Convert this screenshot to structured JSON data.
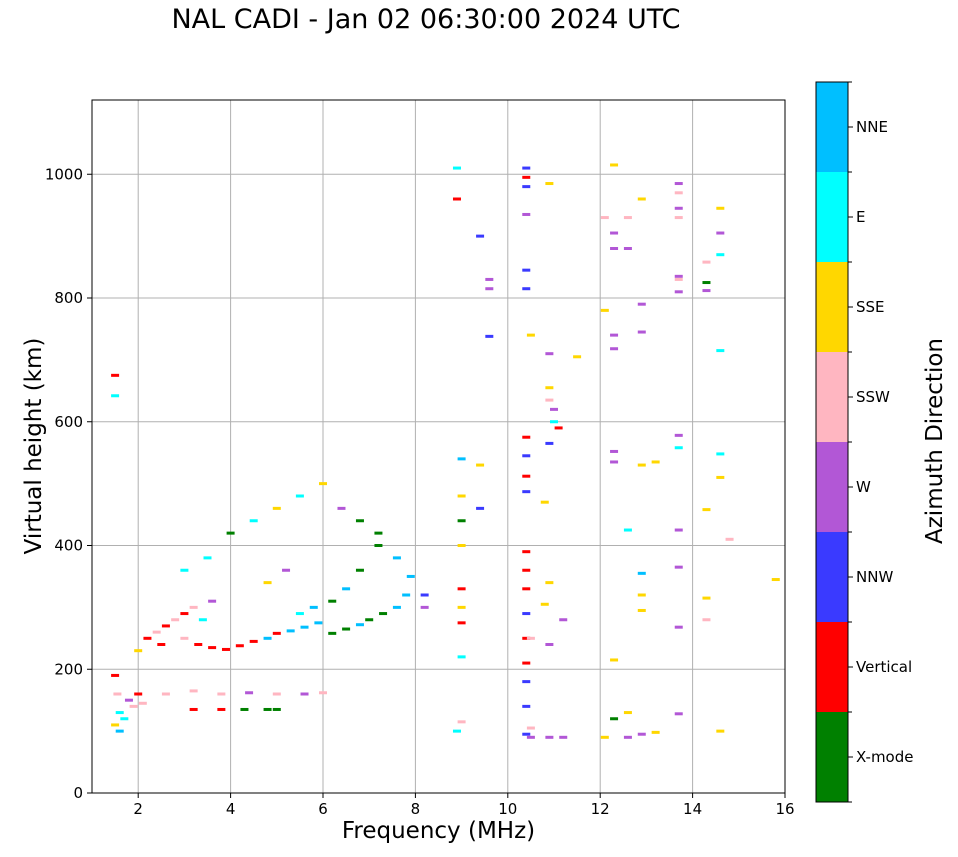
{
  "chart_data": {
    "type": "scatter",
    "title": "NAL CADI - Jan 02 06:30:00 2024 UTC",
    "xlabel": "Frequency (MHz)",
    "ylabel": "Virtual height (km)",
    "xlim": [
      1,
      16
    ],
    "ylim": [
      0,
      1120
    ],
    "xticks": [
      2,
      4,
      6,
      8,
      10,
      12,
      14,
      16
    ],
    "yticks": [
      0,
      200,
      400,
      600,
      800,
      1000
    ],
    "grid": true,
    "colorbar": {
      "label": "Azimuth Direction",
      "categories": [
        {
          "name": "X-mode",
          "color": "#008000"
        },
        {
          "name": "Vertical",
          "color": "#ff0000"
        },
        {
          "name": "NNW",
          "color": "#3a3aff"
        },
        {
          "name": "W",
          "color": "#b257d6"
        },
        {
          "name": "SSW",
          "color": "#ffb6c1"
        },
        {
          "name": "SSE",
          "color": "#ffd700"
        },
        {
          "name": "E",
          "color": "#00ffff"
        },
        {
          "name": "NNE",
          "color": "#00bfff"
        }
      ]
    },
    "points": [
      [
        1.5,
        675,
        "Vertical"
      ],
      [
        1.5,
        642,
        "E"
      ],
      [
        1.5,
        190,
        "Vertical"
      ],
      [
        1.55,
        160,
        "SSW"
      ],
      [
        1.6,
        130,
        "E"
      ],
      [
        1.5,
        110,
        "SSE"
      ],
      [
        1.6,
        100,
        "NNE"
      ],
      [
        1.7,
        120,
        "E"
      ],
      [
        1.8,
        150,
        "W"
      ],
      [
        1.9,
        140,
        "SSW"
      ],
      [
        2.0,
        160,
        "Vertical"
      ],
      [
        2.1,
        145,
        "SSW"
      ],
      [
        2.0,
        230,
        "SSE"
      ],
      [
        2.2,
        250,
        "Vertical"
      ],
      [
        2.4,
        260,
        "SSW"
      ],
      [
        2.6,
        270,
        "Vertical"
      ],
      [
        2.8,
        280,
        "SSW"
      ],
      [
        3.0,
        290,
        "Vertical"
      ],
      [
        3.2,
        300,
        "SSW"
      ],
      [
        3.4,
        280,
        "E"
      ],
      [
        3.6,
        310,
        "W"
      ],
      [
        2.5,
        240,
        "Vertical"
      ],
      [
        3.0,
        250,
        "SSW"
      ],
      [
        3.3,
        240,
        "Vertical"
      ],
      [
        3.6,
        235,
        "Vertical"
      ],
      [
        3.9,
        232,
        "Vertical"
      ],
      [
        4.2,
        238,
        "Vertical"
      ],
      [
        4.5,
        245,
        "Vertical"
      ],
      [
        4.8,
        250,
        "NNE"
      ],
      [
        5.0,
        258,
        "Vertical"
      ],
      [
        5.3,
        262,
        "NNE"
      ],
      [
        5.6,
        268,
        "NNE"
      ],
      [
        5.9,
        275,
        "NNE"
      ],
      [
        6.2,
        258,
        "X-mode"
      ],
      [
        6.5,
        265,
        "X-mode"
      ],
      [
        6.8,
        272,
        "NNE"
      ],
      [
        7.0,
        280,
        "X-mode"
      ],
      [
        7.3,
        290,
        "X-mode"
      ],
      [
        7.6,
        300,
        "NNE"
      ],
      [
        7.8,
        320,
        "NNE"
      ],
      [
        7.9,
        350,
        "NNE"
      ],
      [
        7.6,
        380,
        "NNE"
      ],
      [
        7.2,
        400,
        "X-mode"
      ],
      [
        6.8,
        360,
        "X-mode"
      ],
      [
        6.5,
        330,
        "NNE"
      ],
      [
        6.2,
        310,
        "X-mode"
      ],
      [
        5.8,
        300,
        "NNE"
      ],
      [
        5.5,
        290,
        "E"
      ],
      [
        3.0,
        360,
        "E"
      ],
      [
        3.5,
        380,
        "E"
      ],
      [
        4.0,
        420,
        "X-mode"
      ],
      [
        4.5,
        440,
        "E"
      ],
      [
        5.0,
        460,
        "SSE"
      ],
      [
        5.5,
        480,
        "E"
      ],
      [
        6.0,
        500,
        "SSE"
      ],
      [
        6.4,
        460,
        "W"
      ],
      [
        6.8,
        440,
        "X-mode"
      ],
      [
        7.2,
        420,
        "X-mode"
      ],
      [
        5.2,
        360,
        "W"
      ],
      [
        4.8,
        340,
        "SSE"
      ],
      [
        2.6,
        160,
        "SSW"
      ],
      [
        3.2,
        165,
        "SSW"
      ],
      [
        3.8,
        160,
        "SSW"
      ],
      [
        4.4,
        162,
        "W"
      ],
      [
        5.0,
        160,
        "SSW"
      ],
      [
        5.6,
        160,
        "W"
      ],
      [
        6.0,
        162,
        "SSW"
      ],
      [
        3.2,
        135,
        "Vertical"
      ],
      [
        3.8,
        135,
        "Vertical"
      ],
      [
        4.3,
        135,
        "X-mode"
      ],
      [
        4.8,
        135,
        "X-mode"
      ],
      [
        5.0,
        135,
        "X-mode"
      ],
      [
        8.2,
        320,
        "NNW"
      ],
      [
        8.2,
        300,
        "W"
      ],
      [
        8.9,
        1010,
        "E"
      ],
      [
        8.9,
        960,
        "Vertical"
      ],
      [
        9.0,
        540,
        "NNE"
      ],
      [
        9.0,
        480,
        "SSE"
      ],
      [
        9.0,
        440,
        "X-mode"
      ],
      [
        9.0,
        400,
        "SSE"
      ],
      [
        9.0,
        330,
        "Vertical"
      ],
      [
        9.0,
        300,
        "SSE"
      ],
      [
        9.0,
        275,
        "Vertical"
      ],
      [
        9.0,
        220,
        "E"
      ],
      [
        9.0,
        115,
        "SSW"
      ],
      [
        8.9,
        100,
        "E"
      ],
      [
        9.4,
        900,
        "NNW"
      ],
      [
        9.4,
        530,
        "SSE"
      ],
      [
        9.4,
        460,
        "NNW"
      ],
      [
        9.6,
        830,
        "W"
      ],
      [
        9.6,
        815,
        "W"
      ],
      [
        9.6,
        738,
        "NNW"
      ],
      [
        10.4,
        1010,
        "NNW"
      ],
      [
        10.4,
        995,
        "Vertical"
      ],
      [
        10.4,
        980,
        "NNW"
      ],
      [
        10.4,
        935,
        "W"
      ],
      [
        10.4,
        845,
        "NNW"
      ],
      [
        10.4,
        815,
        "NNW"
      ],
      [
        10.4,
        575,
        "Vertical"
      ],
      [
        10.4,
        545,
        "NNW"
      ],
      [
        10.4,
        512,
        "Vertical"
      ],
      [
        10.4,
        487,
        "NNW"
      ],
      [
        10.4,
        390,
        "Vertical"
      ],
      [
        10.4,
        360,
        "Vertical"
      ],
      [
        10.4,
        330,
        "Vertical"
      ],
      [
        10.4,
        290,
        "NNW"
      ],
      [
        10.4,
        250,
        "Vertical"
      ],
      [
        10.4,
        210,
        "Vertical"
      ],
      [
        10.4,
        180,
        "NNW"
      ],
      [
        10.4,
        140,
        "NNW"
      ],
      [
        10.4,
        95,
        "NNW"
      ],
      [
        10.5,
        740,
        "SSE"
      ],
      [
        10.5,
        250,
        "SSW"
      ],
      [
        10.5,
        105,
        "SSW"
      ],
      [
        10.5,
        90,
        "W"
      ],
      [
        10.8,
        470,
        "SSE"
      ],
      [
        10.8,
        305,
        "SSE"
      ],
      [
        10.9,
        985,
        "SSE"
      ],
      [
        10.9,
        710,
        "W"
      ],
      [
        10.9,
        655,
        "SSE"
      ],
      [
        10.9,
        635,
        "SSW"
      ],
      [
        10.9,
        565,
        "NNW"
      ],
      [
        10.9,
        340,
        "SSE"
      ],
      [
        10.9,
        240,
        "W"
      ],
      [
        10.9,
        90,
        "W"
      ],
      [
        11.0,
        620,
        "W"
      ],
      [
        11.0,
        600,
        "E"
      ],
      [
        11.1,
        590,
        "Vertical"
      ],
      [
        11.2,
        280,
        "W"
      ],
      [
        11.2,
        90,
        "W"
      ],
      [
        11.5,
        705,
        "SSE"
      ],
      [
        12.1,
        930,
        "SSW"
      ],
      [
        12.1,
        780,
        "SSE"
      ],
      [
        12.1,
        90,
        "SSE"
      ],
      [
        12.3,
        1015,
        "SSE"
      ],
      [
        12.3,
        905,
        "W"
      ],
      [
        12.3,
        880,
        "W"
      ],
      [
        12.3,
        740,
        "W"
      ],
      [
        12.3,
        718,
        "W"
      ],
      [
        12.3,
        552,
        "W"
      ],
      [
        12.3,
        535,
        "W"
      ],
      [
        12.3,
        215,
        "SSE"
      ],
      [
        12.3,
        120,
        "X-mode"
      ],
      [
        12.6,
        930,
        "SSW"
      ],
      [
        12.6,
        880,
        "W"
      ],
      [
        12.6,
        425,
        "E"
      ],
      [
        12.6,
        130,
        "SSE"
      ],
      [
        12.6,
        90,
        "W"
      ],
      [
        12.9,
        960,
        "SSE"
      ],
      [
        12.9,
        790,
        "W"
      ],
      [
        12.9,
        745,
        "W"
      ],
      [
        12.9,
        530,
        "SSE"
      ],
      [
        12.9,
        355,
        "NNE"
      ],
      [
        12.9,
        320,
        "SSE"
      ],
      [
        12.9,
        295,
        "SSE"
      ],
      [
        12.9,
        95,
        "W"
      ],
      [
        13.2,
        535,
        "SSE"
      ],
      [
        13.2,
        98,
        "SSE"
      ],
      [
        13.7,
        985,
        "W"
      ],
      [
        13.7,
        970,
        "SSW"
      ],
      [
        13.7,
        945,
        "W"
      ],
      [
        13.7,
        930,
        "SSW"
      ],
      [
        13.7,
        835,
        "W"
      ],
      [
        13.7,
        830,
        "SSW"
      ],
      [
        13.7,
        810,
        "W"
      ],
      [
        13.7,
        578,
        "W"
      ],
      [
        13.7,
        558,
        "E"
      ],
      [
        13.7,
        425,
        "W"
      ],
      [
        13.7,
        365,
        "W"
      ],
      [
        13.7,
        268,
        "W"
      ],
      [
        13.7,
        128,
        "W"
      ],
      [
        14.3,
        858,
        "SSW"
      ],
      [
        14.3,
        825,
        "X-mode"
      ],
      [
        14.3,
        812,
        "W"
      ],
      [
        14.3,
        458,
        "SSE"
      ],
      [
        14.3,
        315,
        "SSE"
      ],
      [
        14.3,
        280,
        "SSW"
      ],
      [
        14.6,
        945,
        "SSE"
      ],
      [
        14.6,
        905,
        "W"
      ],
      [
        14.6,
        870,
        "E"
      ],
      [
        14.6,
        715,
        "E"
      ],
      [
        14.6,
        548,
        "E"
      ],
      [
        14.6,
        510,
        "SSE"
      ],
      [
        14.6,
        100,
        "SSE"
      ],
      [
        14.8,
        410,
        "SSW"
      ],
      [
        15.8,
        345,
        "SSE"
      ]
    ]
  }
}
